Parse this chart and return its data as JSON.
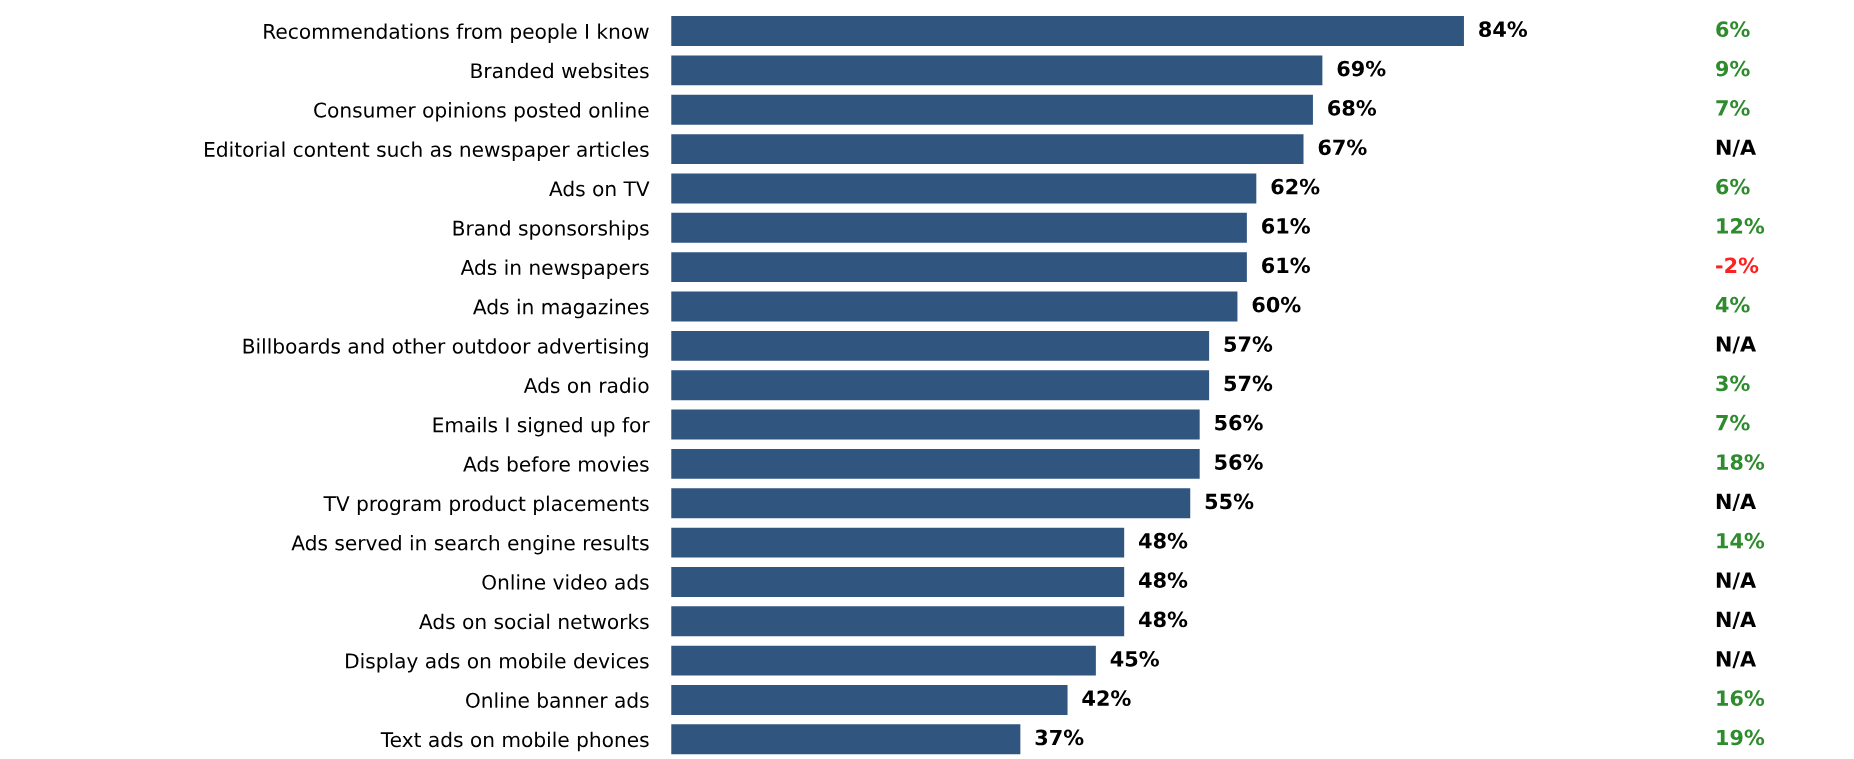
{
  "chart_data": [
    {
      "type": "bar",
      "orientation": "horizontal",
      "categories": [
        "Recommendations from people I know",
        "Branded websites",
        "Consumer opinions posted online",
        "Editorial content such as newspaper articles",
        "Ads on TV",
        "Brand sponsorships",
        "Ads in newspapers",
        "Ads in magazines",
        "Billboards and other outdoor advertising",
        "Ads on radio",
        "Emails I signed up for",
        "Ads before movies",
        "TV program product placements",
        "Ads served in search engine results",
        "Online video ads",
        "Ads on social networks",
        "Display ads on mobile devices",
        "Online banner ads",
        "Text ads on mobile phones"
      ],
      "values": [
        84,
        69,
        68,
        67,
        62,
        61,
        61,
        60,
        57,
        57,
        56,
        56,
        55,
        48,
        48,
        48,
        45,
        42,
        37
      ],
      "value_labels": [
        "84%",
        "69%",
        "68%",
        "67%",
        "62%",
        "61%",
        "61%",
        "60%",
        "57%",
        "57%",
        "56%",
        "56%",
        "55%",
        "48%",
        "48%",
        "48%",
        "45%",
        "42%",
        "37%"
      ],
      "color": "#30557f",
      "tick_labels": "y",
      "grid": false,
      "legend": false
    },
    {
      "type": "other",
      "categories": [
        null,
        null,
        null,
        null,
        null,
        null,
        null,
        null,
        null,
        null,
        null,
        null,
        null,
        null,
        null,
        null,
        null,
        null,
        null
      ],
      "values": [
        6,
        9,
        7,
        null,
        6,
        12,
        -2,
        4,
        null,
        3,
        7,
        18,
        null,
        14,
        null,
        null,
        null,
        16,
        19
      ],
      "value_labels": [
        "6%",
        "9%",
        "7%",
        "N/A",
        "6%",
        "12%",
        "-2%",
        "4%",
        "N/A",
        "3%",
        "7%",
        "18%",
        "N/A",
        "14%",
        "N/A",
        "N/A",
        "N/A",
        "16%",
        "19%"
      ],
      "colors": [
        "#2e8b2e",
        "#2e8b2e",
        "#2e8b2e",
        "#000000",
        "#2e8b2e",
        "#2e8b2e",
        "#ff2020",
        "#2e8b2e",
        "#000000",
        "#2e8b2e",
        "#2e8b2e",
        "#2e8b2e",
        "#000000",
        "#2e8b2e",
        "#000000",
        "#000000",
        "#000000",
        "#2e8b2e",
        "#2e8b2e"
      ]
    }
  ]
}
